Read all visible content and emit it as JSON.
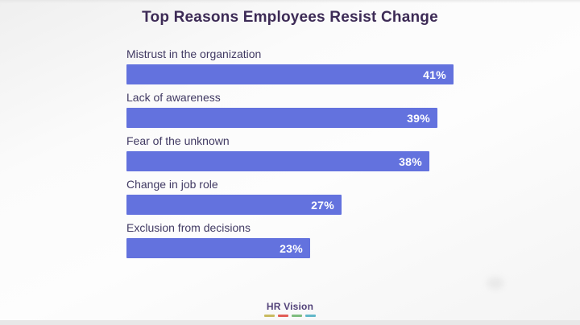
{
  "title": "Top Reasons Employees Resist Change",
  "footer": {
    "brand": "HR Vision",
    "dash_colors": [
      "#c9bb60",
      "#e25d55",
      "#7fbd7f",
      "#62b8c9"
    ]
  },
  "colors": {
    "bar": "#6372de",
    "title_text": "#3d2b56",
    "label_text": "#413a63",
    "value_text": "#ffffff",
    "brand_text": "#53437a",
    "bottom_strip": "#e8e8e8"
  },
  "chart_data": {
    "type": "bar",
    "orientation": "horizontal",
    "title": "Top Reasons Employees Resist Change",
    "categories": [
      "Mistrust in the organization",
      "Lack of awareness",
      "Fear of the unknown",
      "Change in job role",
      "Exclusion from decisions"
    ],
    "values": [
      41,
      39,
      38,
      27,
      23
    ],
    "value_suffix": "%",
    "value_labels": "inside-end",
    "xlabel": "",
    "ylabel": "",
    "xlim": [
      0,
      41
    ],
    "grid": false,
    "legend": false
  }
}
